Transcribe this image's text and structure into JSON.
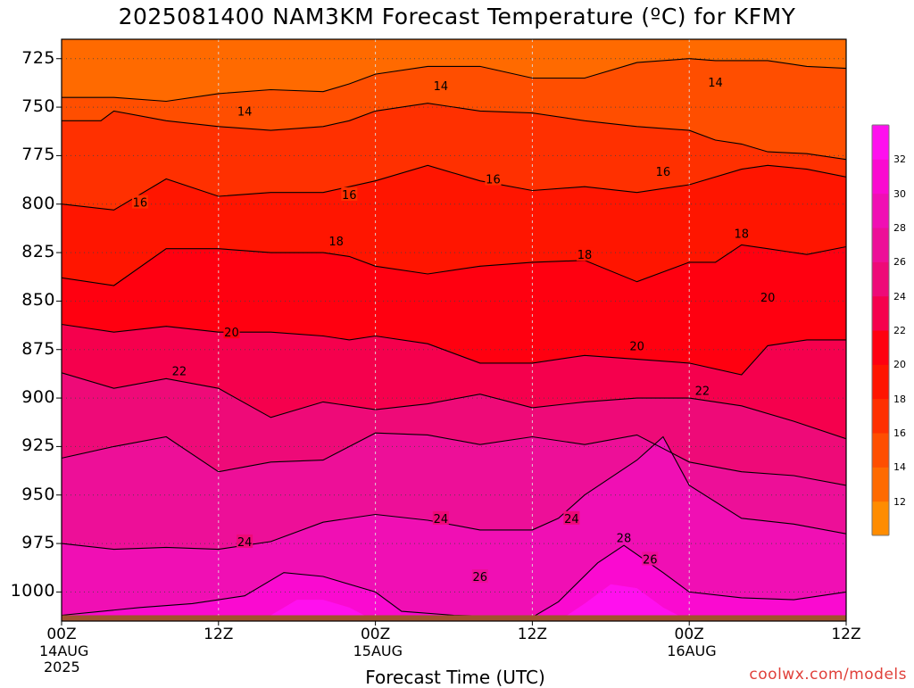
{
  "title": "2025081400 NAM3KM Forecast Temperature (ºC) for KFMY",
  "xlabel": "Forecast Time (UTC)",
  "credit": "coolwx.com/models",
  "chart_data": {
    "type": "heatmap",
    "x_hours_range": [
      0,
      60
    ],
    "ylim": [
      1015,
      715
    ],
    "y_ticks": [
      725,
      750,
      775,
      800,
      825,
      850,
      875,
      900,
      925,
      950,
      975,
      1000
    ],
    "y_tick_labels": [
      "725",
      "750",
      "775",
      "800",
      "825",
      "850",
      "875",
      "900",
      "925",
      "950",
      "975",
      "1000"
    ],
    "x_ticks": [
      {
        "hour": 0,
        "label": "00Z",
        "date": "14AUG",
        "year": "2025"
      },
      {
        "hour": 12,
        "label": "12Z",
        "date": "",
        "year": ""
      },
      {
        "hour": 24,
        "label": "00Z",
        "date": "15AUG",
        "year": ""
      },
      {
        "hour": 36,
        "label": "12Z",
        "date": "",
        "year": ""
      },
      {
        "hour": 48,
        "label": "00Z",
        "date": "16AUG",
        "year": ""
      },
      {
        "hour": 60,
        "label": "12Z",
        "date": "",
        "year": ""
      }
    ],
    "grid": true,
    "colorbar": {
      "levels": [
        10,
        12,
        14,
        16,
        18,
        20,
        22,
        24,
        26,
        28,
        30,
        32,
        34
      ],
      "colors": [
        "#ff8c00",
        "#ff6a00",
        "#ff4e00",
        "#ff3000",
        "#ff1500",
        "#ff0010",
        "#f5004d",
        "#ee0a78",
        "#ed0f98",
        "#f00fb4",
        "#fa0ad0",
        "#ff10ee"
      ],
      "tick_labels": [
        "12",
        "14",
        "16",
        "18",
        "20",
        "22",
        "24",
        "26",
        "28",
        "30",
        "32"
      ]
    },
    "contours": [
      {
        "value": 14,
        "points": [
          [
            0,
            745
          ],
          [
            4,
            745
          ],
          [
            8,
            747
          ],
          [
            12,
            743
          ],
          [
            16,
            741
          ],
          [
            20,
            742
          ],
          [
            22,
            738
          ],
          [
            24,
            733
          ],
          [
            28,
            729
          ],
          [
            32,
            729
          ],
          [
            36,
            735
          ],
          [
            40,
            735
          ],
          [
            44,
            727
          ],
          [
            48,
            725
          ],
          [
            50,
            726
          ],
          [
            54,
            726
          ],
          [
            57,
            729
          ],
          [
            60,
            730
          ]
        ]
      },
      {
        "value": 16,
        "points": [
          [
            0,
            757
          ],
          [
            3,
            757
          ],
          [
            4,
            752
          ],
          [
            8,
            757
          ],
          [
            12,
            760
          ],
          [
            16,
            762
          ],
          [
            20,
            760
          ],
          [
            22,
            757
          ],
          [
            24,
            752
          ],
          [
            28,
            748
          ],
          [
            32,
            752
          ],
          [
            36,
            753
          ],
          [
            40,
            757
          ],
          [
            44,
            760
          ],
          [
            48,
            762
          ],
          [
            50,
            767
          ],
          [
            52,
            769
          ],
          [
            54,
            773
          ],
          [
            57,
            774
          ],
          [
            60,
            777
          ]
        ]
      },
      {
        "value": 18,
        "points": [
          [
            0,
            800
          ],
          [
            4,
            803
          ],
          [
            8,
            787
          ],
          [
            12,
            796
          ],
          [
            16,
            794
          ],
          [
            20,
            794
          ],
          [
            22,
            791
          ],
          [
            24,
            788
          ],
          [
            28,
            780
          ],
          [
            32,
            788
          ],
          [
            36,
            793
          ],
          [
            40,
            791
          ],
          [
            44,
            794
          ],
          [
            48,
            790
          ],
          [
            52,
            782
          ],
          [
            54,
            780
          ],
          [
            57,
            782
          ],
          [
            60,
            786
          ]
        ]
      },
      {
        "value": 20,
        "points": [
          [
            0,
            838
          ],
          [
            4,
            842
          ],
          [
            8,
            823
          ],
          [
            12,
            823
          ],
          [
            16,
            825
          ],
          [
            20,
            825
          ],
          [
            22,
            827
          ],
          [
            24,
            832
          ],
          [
            28,
            836
          ],
          [
            32,
            832
          ],
          [
            36,
            830
          ],
          [
            40,
            829
          ],
          [
            44,
            840
          ],
          [
            48,
            830
          ],
          [
            50,
            830
          ],
          [
            52,
            821
          ],
          [
            54,
            823
          ],
          [
            57,
            826
          ],
          [
            60,
            822
          ]
        ]
      },
      {
        "value": 22,
        "points": [
          [
            0,
            862
          ],
          [
            4,
            866
          ],
          [
            8,
            863
          ],
          [
            12,
            866
          ],
          [
            16,
            866
          ],
          [
            20,
            868
          ],
          [
            22,
            870
          ],
          [
            24,
            868
          ],
          [
            28,
            872
          ],
          [
            32,
            882
          ],
          [
            36,
            882
          ],
          [
            40,
            878
          ],
          [
            44,
            880
          ],
          [
            48,
            882
          ],
          [
            52,
            888
          ],
          [
            54,
            873
          ],
          [
            57,
            870
          ],
          [
            60,
            870
          ]
        ]
      },
      {
        "value": 24,
        "points": [
          [
            0,
            887
          ],
          [
            4,
            895
          ],
          [
            8,
            890
          ],
          [
            12,
            895
          ],
          [
            16,
            910
          ],
          [
            20,
            902
          ],
          [
            24,
            906
          ],
          [
            28,
            903
          ],
          [
            32,
            898
          ],
          [
            36,
            905
          ],
          [
            40,
            902
          ],
          [
            44,
            900
          ],
          [
            48,
            900
          ],
          [
            52,
            904
          ],
          [
            56,
            912
          ],
          [
            60,
            921
          ]
        ]
      },
      {
        "value": 26,
        "points": [
          [
            0,
            931
          ],
          [
            4,
            925
          ],
          [
            8,
            920
          ],
          [
            12,
            938
          ],
          [
            16,
            933
          ],
          [
            20,
            932
          ],
          [
            24,
            918
          ],
          [
            28,
            919
          ],
          [
            32,
            924
          ],
          [
            36,
            920
          ],
          [
            40,
            924
          ],
          [
            44,
            919
          ],
          [
            48,
            933
          ],
          [
            52,
            938
          ],
          [
            56,
            940
          ],
          [
            60,
            945
          ]
        ]
      },
      {
        "value": 28,
        "points": [
          [
            0,
            975
          ],
          [
            4,
            978
          ],
          [
            8,
            977
          ],
          [
            12,
            978
          ],
          [
            16,
            974
          ],
          [
            20,
            964
          ],
          [
            24,
            960
          ],
          [
            28,
            963
          ],
          [
            32,
            968
          ],
          [
            36,
            968
          ],
          [
            38,
            962
          ],
          [
            40,
            950
          ],
          [
            44,
            932
          ],
          [
            46,
            920
          ],
          [
            48,
            945
          ],
          [
            52,
            962
          ],
          [
            56,
            965
          ],
          [
            60,
            970
          ]
        ]
      },
      {
        "value": 30,
        "points": [
          [
            0,
            1012
          ],
          [
            6,
            1008
          ],
          [
            10,
            1006
          ],
          [
            14,
            1002
          ],
          [
            17,
            990
          ],
          [
            20,
            992
          ],
          [
            24,
            1000
          ],
          [
            26,
            1010
          ],
          [
            30,
            1012
          ],
          [
            36,
            1013
          ],
          [
            38,
            1005
          ],
          [
            41,
            985
          ],
          [
            43,
            976
          ],
          [
            46,
            990
          ],
          [
            48,
            1000
          ],
          [
            52,
            1003
          ],
          [
            56,
            1004
          ],
          [
            60,
            1000
          ]
        ]
      },
      {
        "value": 32,
        "points": [
          [
            0,
            1015
          ],
          [
            12,
            1015
          ],
          [
            16,
            1012
          ],
          [
            18,
            1004
          ],
          [
            20,
            1004
          ],
          [
            22,
            1008
          ],
          [
            24,
            1015
          ],
          [
            38,
            1015
          ],
          [
            40,
            1006
          ],
          [
            42,
            996
          ],
          [
            44,
            998
          ],
          [
            46,
            1008
          ],
          [
            48,
            1015
          ],
          [
            60,
            1015
          ]
        ]
      }
    ],
    "contour_labels": [
      {
        "value": 14,
        "hour": 14,
        "p": 752
      },
      {
        "value": 14,
        "hour": 29,
        "p": 739
      },
      {
        "value": 14,
        "hour": 50,
        "p": 737
      },
      {
        "value": 16,
        "hour": 6,
        "p": 799
      },
      {
        "value": 16,
        "hour": 22,
        "p": 795
      },
      {
        "value": 16,
        "hour": 33,
        "p": 787
      },
      {
        "value": 16,
        "hour": 46,
        "p": 783
      },
      {
        "value": 18,
        "hour": 21,
        "p": 819
      },
      {
        "value": 18,
        "hour": 40,
        "p": 826
      },
      {
        "value": 18,
        "hour": 52,
        "p": 815
      },
      {
        "value": 20,
        "hour": 13,
        "p": 866
      },
      {
        "value": 20,
        "hour": 44,
        "p": 873
      },
      {
        "value": 20,
        "hour": 54,
        "p": 848
      },
      {
        "value": 22,
        "hour": 9,
        "p": 886
      },
      {
        "value": 22,
        "hour": 49,
        "p": 896
      },
      {
        "value": 24,
        "hour": 14,
        "p": 974
      },
      {
        "value": 24,
        "hour": 29,
        "p": 962
      },
      {
        "value": 24,
        "hour": 39,
        "p": 962
      },
      {
        "value": 26,
        "hour": 32,
        "p": 992
      },
      {
        "value": 26,
        "hour": 45,
        "p": 983
      },
      {
        "value": 28,
        "hour": 43,
        "p": 972
      }
    ],
    "ground": {
      "pressure": 1012,
      "color": "#a0522d"
    }
  }
}
